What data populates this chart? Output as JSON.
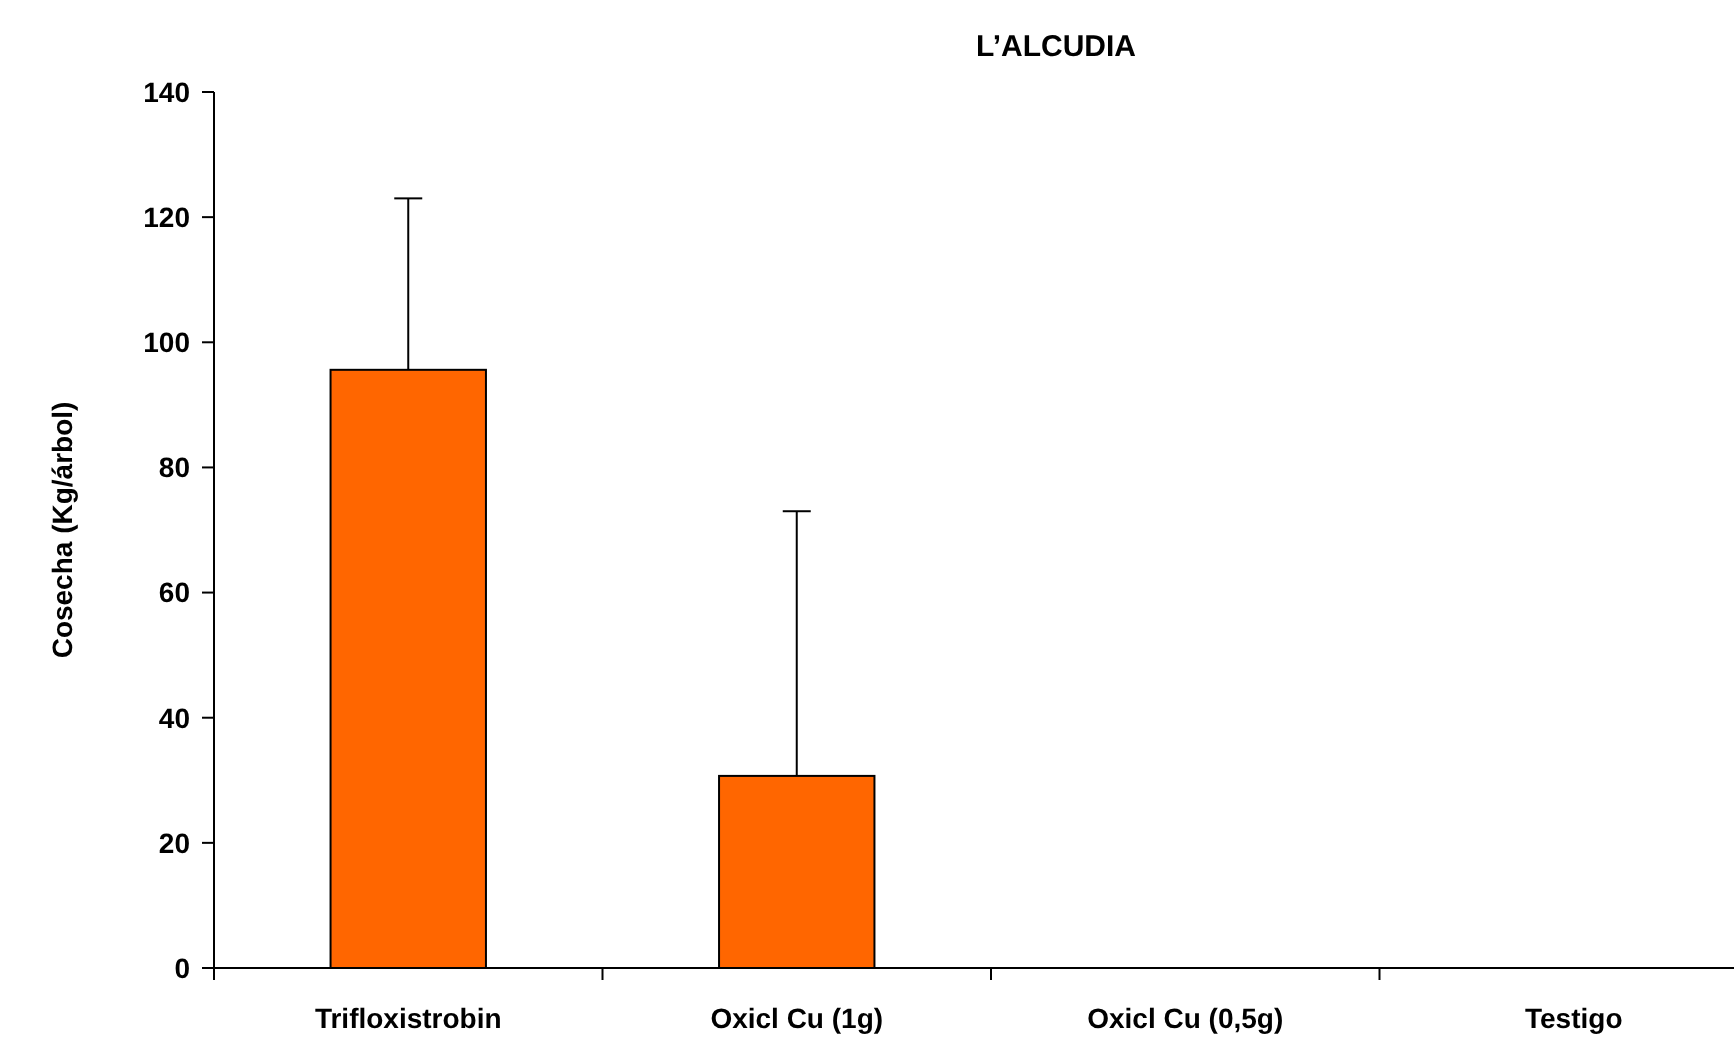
{
  "chart_data": {
    "type": "bar",
    "title": "L’ALCUDIA",
    "ylabel": "Cosecha (Kg/árbol)",
    "categories": [
      "Trifloxistrobin",
      "Oxicl Cu (1g)",
      "Oxicl Cu (0,5g)",
      "Testigo"
    ],
    "values": [
      95.6,
      30.7,
      0,
      0
    ],
    "color": "#ff6600",
    "errors": [
      [
        95.6,
        123
      ],
      [
        30.7,
        73
      ],
      null,
      null
    ],
    "ylim": [
      0,
      140
    ],
    "yticks": [
      0,
      20,
      40,
      60,
      80,
      100,
      120,
      140
    ]
  }
}
